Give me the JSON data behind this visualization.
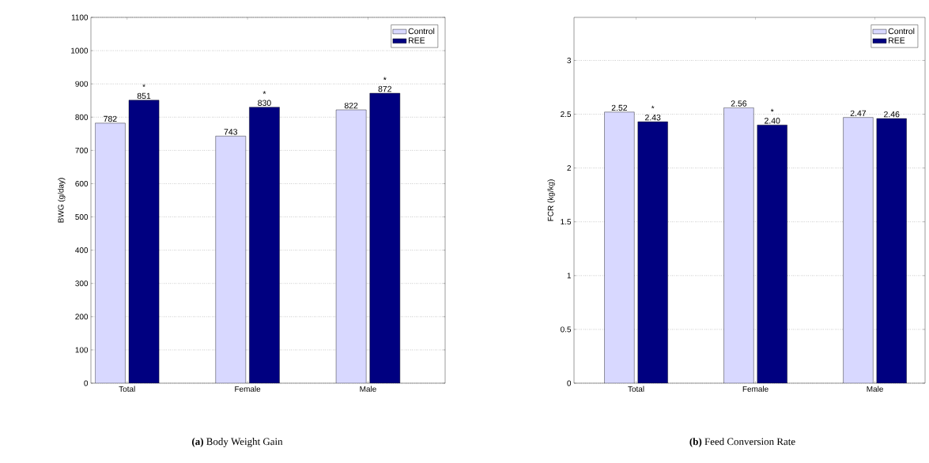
{
  "chart_data": [
    {
      "type": "bar",
      "title": "**(a)** Body Weight Gain",
      "ylabel": "BWG (g/day)",
      "categories": [
        "Total",
        "Female",
        "Male"
      ],
      "series": [
        {
          "name": "Control",
          "color": "#d8d8ff",
          "values": [
            782,
            743,
            822
          ],
          "value_labels": [
            "782",
            "743",
            "822"
          ]
        },
        {
          "name": "REE",
          "color": "#000080",
          "values": [
            851,
            830,
            872
          ],
          "value_labels": [
            "851",
            "830",
            "872"
          ]
        }
      ],
      "ylim": [
        0,
        1100
      ],
      "yticks": [
        0,
        100,
        200,
        300,
        400,
        500,
        600,
        700,
        800,
        900,
        1000,
        1100
      ],
      "grid": "y",
      "legend": "top right",
      "annotations": [
        {
          "text": "*",
          "x": "Total",
          "y": 851
        },
        {
          "text": "*",
          "x": "Female",
          "y": 830
        },
        {
          "text": "*",
          "x": "Male",
          "y": 872
        }
      ]
    },
    {
      "type": "bar",
      "title": "**(b)** Feed Conversion Rate",
      "ylabel": "FCR (kg/kg)",
      "categories": [
        "Total",
        "Female",
        "Male"
      ],
      "series": [
        {
          "name": "Control",
          "color": "#d8d8ff",
          "values": [
            2.52,
            2.56,
            2.47
          ],
          "value_labels": [
            "2.52",
            "2.56",
            "2.47"
          ]
        },
        {
          "name": "REE",
          "color": "#000080",
          "values": [
            2.43,
            2.4,
            2.46
          ],
          "value_labels": [
            "2.43",
            "2.40",
            "2.46"
          ]
        }
      ],
      "ylim": [
        0,
        3.4
      ],
      "yticks": [
        0,
        0.5,
        1,
        1.5,
        2,
        2.5,
        3
      ],
      "grid": "y",
      "legend": "top right",
      "annotations": [
        {
          "text": "*",
          "x": "Total",
          "y": 2.43
        },
        {
          "text": "*",
          "x": "Female",
          "y": 2.4
        }
      ]
    }
  ]
}
